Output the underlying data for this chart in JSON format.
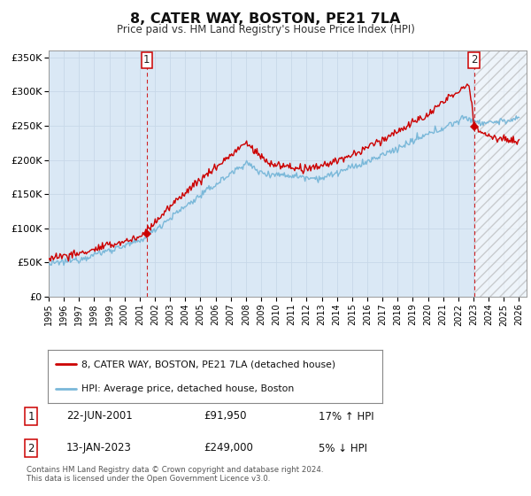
{
  "title": "8, CATER WAY, BOSTON, PE21 7LA",
  "subtitle": "Price paid vs. HM Land Registry's House Price Index (HPI)",
  "legend_line1": "8, CATER WAY, BOSTON, PE21 7LA (detached house)",
  "legend_line2": "HPI: Average price, detached house, Boston",
  "marker1_date": "22-JUN-2001",
  "marker1_price": "£91,950",
  "marker1_hpi": "17% ↑ HPI",
  "marker2_date": "13-JAN-2023",
  "marker2_price": "£249,000",
  "marker2_hpi": "5% ↓ HPI",
  "footer1": "Contains HM Land Registry data © Crown copyright and database right 2024.",
  "footer2": "This data is licensed under the Open Government Licence v3.0.",
  "xlim": [
    1995.0,
    2026.5
  ],
  "ylim": [
    0,
    360000
  ],
  "yticks": [
    0,
    50000,
    100000,
    150000,
    200000,
    250000,
    300000,
    350000
  ],
  "xticks": [
    1995,
    1996,
    1997,
    1998,
    1999,
    2000,
    2001,
    2002,
    2003,
    2004,
    2005,
    2006,
    2007,
    2008,
    2009,
    2010,
    2011,
    2012,
    2013,
    2014,
    2015,
    2016,
    2017,
    2018,
    2019,
    2020,
    2021,
    2022,
    2023,
    2024,
    2025,
    2026
  ],
  "hpi_color": "#7ab8d9",
  "price_color": "#cc0000",
  "marker_color": "#cc0000",
  "vline_color": "#cc0000",
  "grid_color": "#c8d8e8",
  "bg_color": "#dae8f5",
  "marker1_x": 2001.47,
  "marker1_y": 91950,
  "marker2_x": 2023.04,
  "marker2_y": 249000,
  "hatch_start": 2023.04,
  "hatch_end": 2026.5
}
